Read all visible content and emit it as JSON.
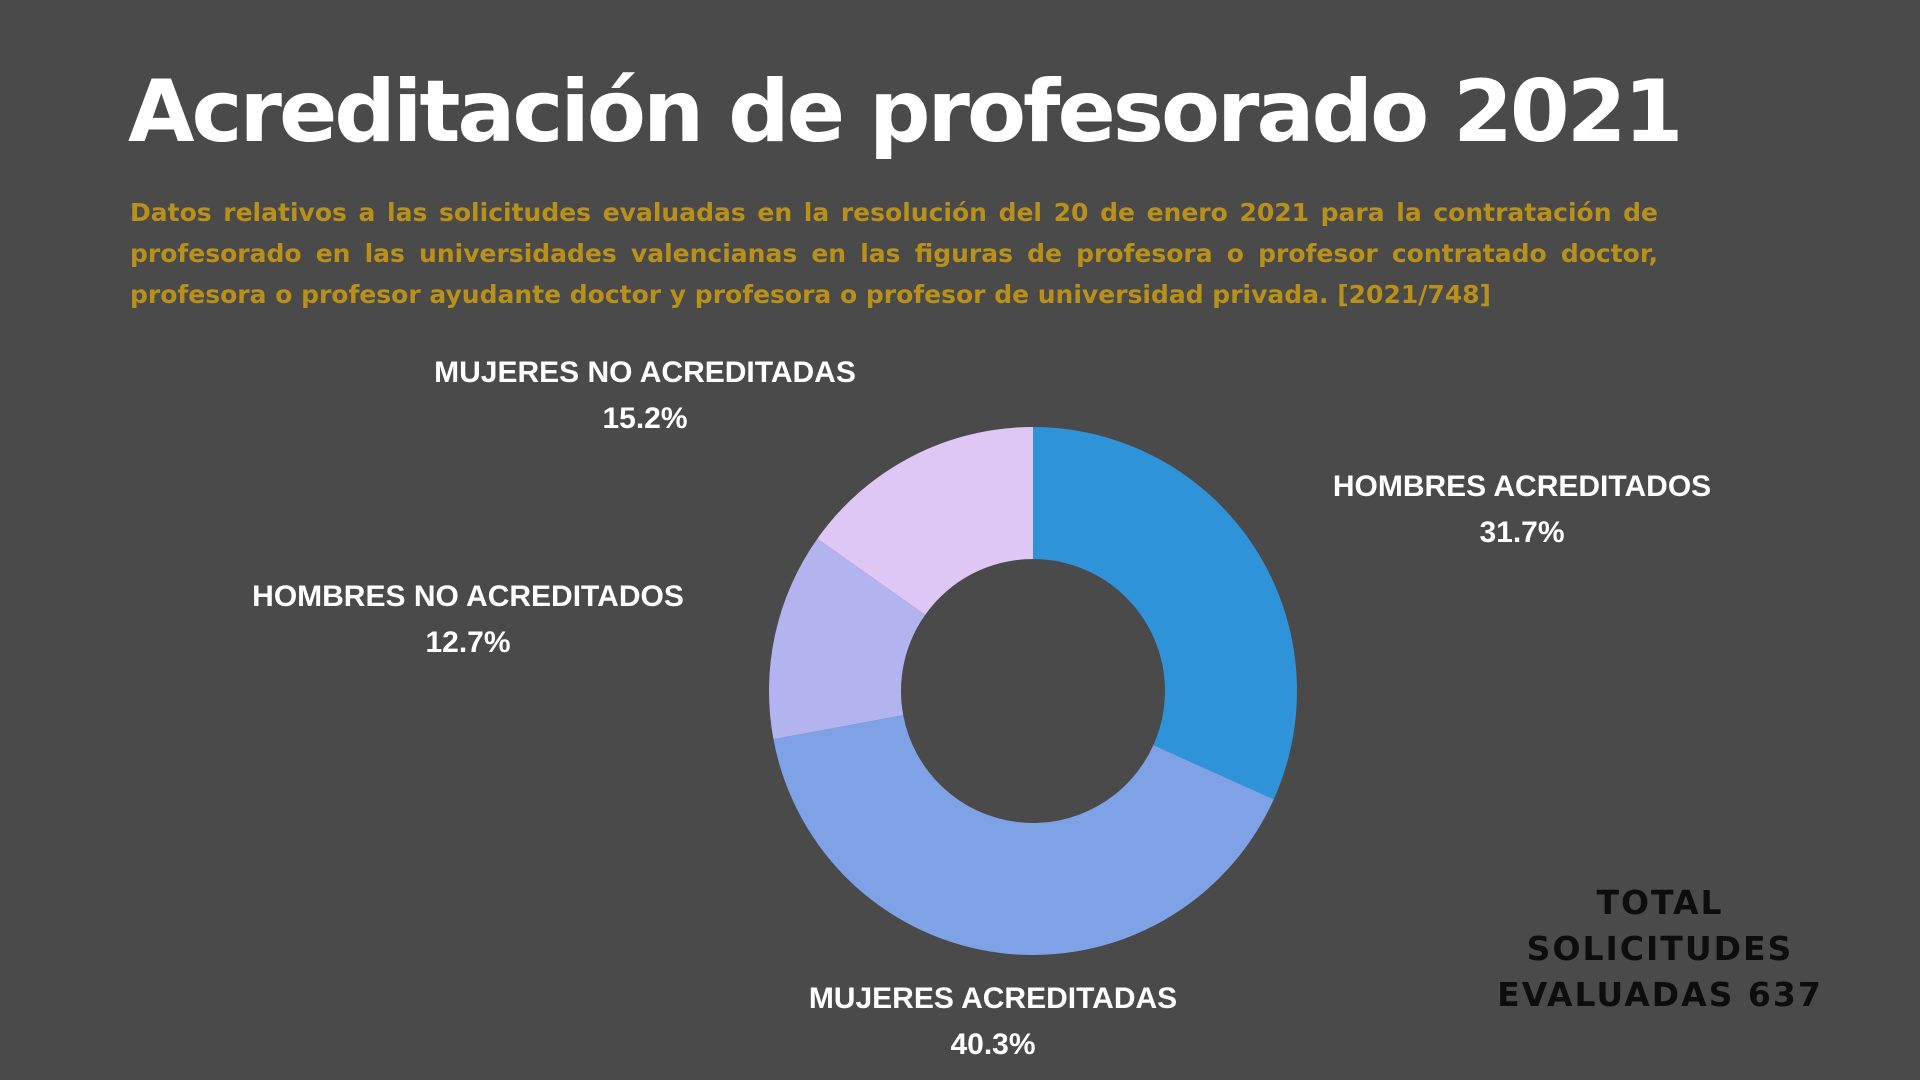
{
  "title": "Acreditación de profesorado 2021",
  "subtitle": "Datos relativos a las solicitudes evaluadas en la resolución del 20 de enero 2021 para la contratación de profesorado en las universidades valencianas en las figuras de profesora o profesor contratado doctor, profesora o profesor ayudante doctor y profesora o profesor de universidad privada. [2021/748]",
  "total_lines": [
    "TOTAL",
    "SOLICITUDES",
    "EVALUADAS 637"
  ],
  "colors": {
    "background": "#4a4a4a",
    "subtitle": "#b8901a",
    "hombres_acreditados": "#2e93d9",
    "mujeres_acreditadas": "#7fa1e6",
    "hombres_no_acreditados": "#b3b3f0",
    "mujeres_no_acreditadas": "#dec6f5"
  },
  "chart_data": {
    "type": "pie",
    "variant": "donut",
    "slices": [
      {
        "label": "HOMBRES ACREDITADOS",
        "value": 31.7,
        "display": "31.7%",
        "color": "#2e93d9"
      },
      {
        "label": "MUJERES ACREDITADAS",
        "value": 40.3,
        "display": "40.3%",
        "color": "#7fa1e6"
      },
      {
        "label": "HOMBRES NO ACREDITADOS",
        "value": 12.7,
        "display": "12.7%",
        "color": "#b3b3f0"
      },
      {
        "label": "MUJERES NO ACREDITADAS",
        "value": 15.2,
        "display": "15.2%",
        "color": "#dec6f5"
      }
    ]
  }
}
